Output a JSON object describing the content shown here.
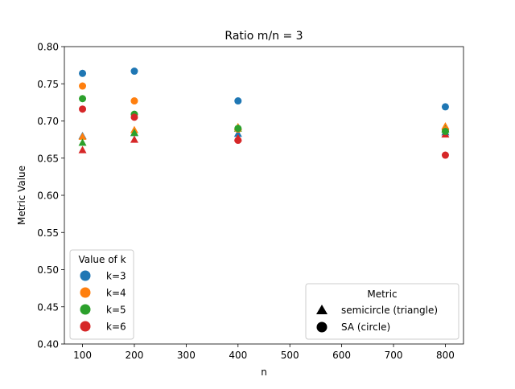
{
  "chart_data": {
    "type": "scatter",
    "title": "Ratio m/n = 3",
    "xlabel": "n",
    "ylabel": "Metric Value",
    "xlim": [
      65,
      835
    ],
    "ylim": [
      0.4,
      0.8
    ],
    "xticks": [
      "100",
      "200",
      "300",
      "400",
      "500",
      "600",
      "700",
      "800"
    ],
    "yticks": [
      "0.40",
      "0.45",
      "0.50",
      "0.55",
      "0.60",
      "0.65",
      "0.70",
      "0.75",
      "0.80"
    ],
    "grid": false,
    "series": [
      {
        "name": "k=3",
        "color": "#1f77b4",
        "semicircle": [
          [
            100,
            0.68
          ],
          [
            200,
            0.684
          ],
          [
            400,
            0.683
          ],
          [
            800,
            0.685
          ]
        ],
        "sa": [
          [
            100,
            0.764
          ],
          [
            200,
            0.767
          ],
          [
            400,
            0.727
          ],
          [
            800,
            0.719
          ]
        ]
      },
      {
        "name": "k=4",
        "color": "#ff7f0e",
        "semicircle": [
          [
            100,
            0.679
          ],
          [
            200,
            0.688
          ],
          [
            400,
            0.692
          ],
          [
            800,
            0.693
          ]
        ],
        "sa": [
          [
            100,
            0.747
          ],
          [
            200,
            0.727
          ],
          [
            400,
            0.689
          ],
          [
            800,
            0.688
          ]
        ]
      },
      {
        "name": "k=5",
        "color": "#2ca02c",
        "semicircle": [
          [
            100,
            0.671
          ],
          [
            200,
            0.684
          ],
          [
            400,
            0.69
          ],
          [
            800,
            0.689
          ]
        ],
        "sa": [
          [
            100,
            0.73
          ],
          [
            200,
            0.709
          ],
          [
            400,
            0.69
          ],
          [
            800,
            0.686
          ]
        ]
      },
      {
        "name": "k=6",
        "color": "#d62728",
        "semicircle": [
          [
            100,
            0.661
          ],
          [
            200,
            0.675
          ],
          [
            400,
            0.677
          ],
          [
            800,
            0.682
          ]
        ],
        "sa": [
          [
            100,
            0.716
          ],
          [
            200,
            0.705
          ],
          [
            400,
            0.674
          ],
          [
            800,
            0.654
          ]
        ]
      }
    ],
    "legend_k": {
      "title": "Value of k",
      "placement": "lower-left"
    },
    "legend_metric": {
      "title": "Metric",
      "placement": "lower-right",
      "entries": [
        "semicircle (triangle)",
        "SA (circle)"
      ]
    }
  }
}
